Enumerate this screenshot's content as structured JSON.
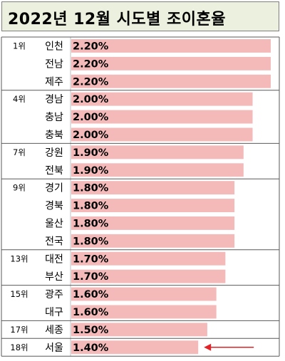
{
  "title": "2022년 12월 시도별 조이혼율",
  "chart_data": {
    "type": "bar",
    "orientation": "horizontal",
    "title": "2022년 12월 시도별 조이혼율",
    "bar_color": "#f4b9b9",
    "arrow_color": "#e0242a",
    "rows": [
      {
        "rank": "1위",
        "region": "인천",
        "value": 2.2,
        "label": "2.20%"
      },
      {
        "rank": "",
        "region": "전남",
        "value": 2.2,
        "label": "2.20%"
      },
      {
        "rank": "",
        "region": "제주",
        "value": 2.2,
        "label": "2.20%"
      },
      {
        "rank": "4위",
        "region": "경남",
        "value": 2.0,
        "label": "2.00%"
      },
      {
        "rank": "",
        "region": "충남",
        "value": 2.0,
        "label": "2.00%"
      },
      {
        "rank": "",
        "region": "충북",
        "value": 2.0,
        "label": "2.00%"
      },
      {
        "rank": "7위",
        "region": "강원",
        "value": 1.9,
        "label": "1.90%"
      },
      {
        "rank": "",
        "region": "전북",
        "value": 1.9,
        "label": "1.90%"
      },
      {
        "rank": "9위",
        "region": "경기",
        "value": 1.8,
        "label": "1.80%"
      },
      {
        "rank": "",
        "region": "경북",
        "value": 1.8,
        "label": "1.80%"
      },
      {
        "rank": "",
        "region": "울산",
        "value": 1.8,
        "label": "1.80%"
      },
      {
        "rank": "",
        "region": "전국",
        "value": 1.8,
        "label": "1.80%"
      },
      {
        "rank": "13위",
        "region": "대전",
        "value": 1.7,
        "label": "1.70%"
      },
      {
        "rank": "",
        "region": "부산",
        "value": 1.7,
        "label": "1.70%"
      },
      {
        "rank": "15위",
        "region": "광주",
        "value": 1.6,
        "label": "1.60%"
      },
      {
        "rank": "",
        "region": "대구",
        "value": 1.6,
        "label": "1.60%"
      },
      {
        "rank": "17위",
        "region": "세종",
        "value": 1.5,
        "label": "1.50%"
      },
      {
        "rank": "18위",
        "region": "서울",
        "value": 1.4,
        "label": "1.40%",
        "highlighted": true
      }
    ]
  }
}
